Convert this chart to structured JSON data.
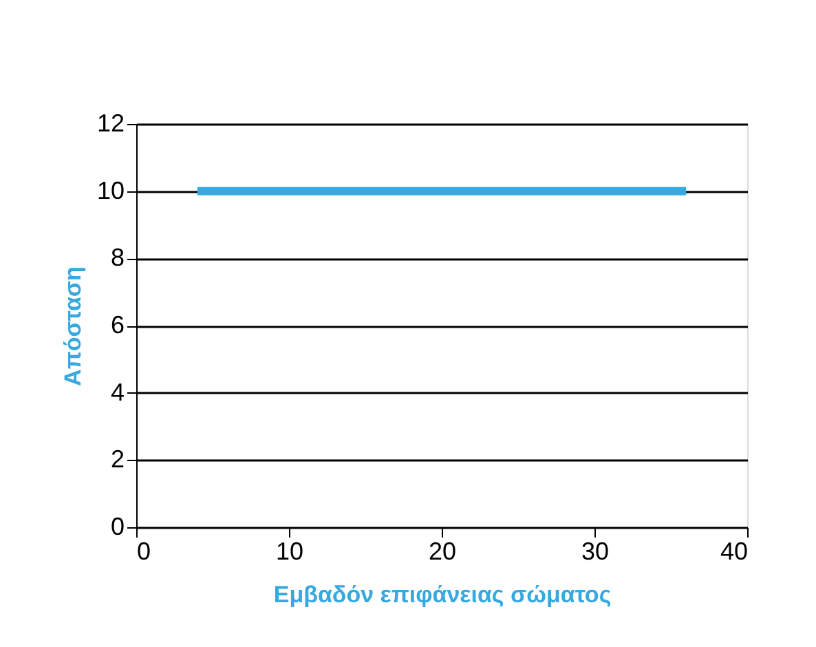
{
  "chart_data": {
    "type": "line",
    "xlabel": "Εμβαδόν επιφάνειας σώματος",
    "ylabel": "Απόσταση",
    "x": [
      4,
      36
    ],
    "series": [
      {
        "color": "#35a9e0",
        "values": [
          10,
          10
        ]
      }
    ],
    "xlim": [
      0,
      40
    ],
    "xticks": [
      0,
      10,
      20,
      30,
      40
    ],
    "ylim": [
      0,
      12
    ],
    "yticks": [
      0,
      2,
      4,
      6,
      8,
      10,
      12
    ],
    "grid": "y",
    "marker": "none",
    "line_style": "solid"
  }
}
